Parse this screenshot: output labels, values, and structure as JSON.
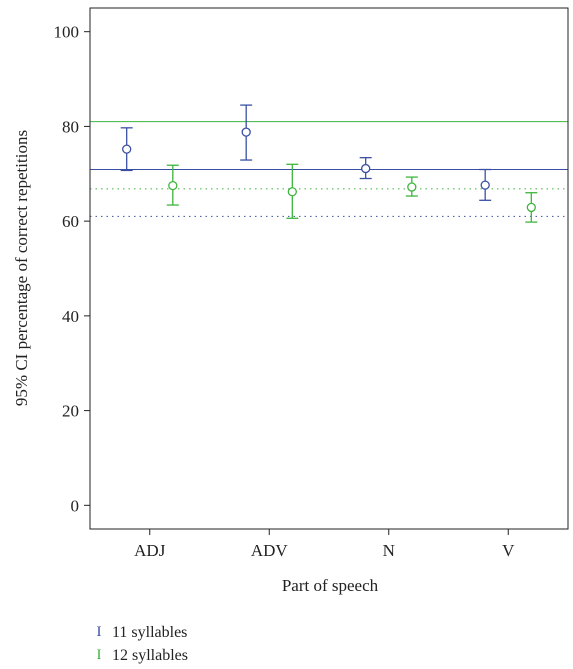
{
  "chart_data": {
    "type": "scatter",
    "subtype": "error-bar",
    "title": "",
    "xlabel": "Part of speech",
    "ylabel": "95% CI percentage of correct repetitions",
    "categories": [
      "ADJ",
      "ADV",
      "N",
      "V"
    ],
    "ylim": [
      -5,
      105
    ],
    "yticks": [
      0,
      20,
      40,
      60,
      80,
      100
    ],
    "grid": false,
    "legend_position": "bottom-left",
    "series": [
      {
        "name": "11 syllables",
        "color": "#3a4fa3",
        "marker": "circle",
        "mean": [
          75.2,
          78.8,
          71.1,
          67.6
        ],
        "lower": [
          70.7,
          72.9,
          69.0,
          64.4
        ],
        "upper": [
          79.7,
          84.5,
          73.4,
          70.9
        ],
        "reference_line": 70.9,
        "reference_line_style": "solid",
        "reference_line_2": 61.0,
        "reference_line_2_style": "dotted"
      },
      {
        "name": "12 syllables",
        "color": "#3db53d",
        "marker": "circle",
        "mean": [
          67.5,
          66.2,
          67.2,
          62.9
        ],
        "lower": [
          63.4,
          60.6,
          65.3,
          59.8
        ],
        "upper": [
          71.8,
          72.0,
          69.3,
          66.0
        ],
        "reference_line": 81.0,
        "reference_line_style": "solid",
        "reference_line_2": 66.8,
        "reference_line_2_style": "dotted"
      }
    ]
  },
  "legend": {
    "items": [
      {
        "symbol": "I",
        "label": "11 syllables",
        "color": "#3a4fa3"
      },
      {
        "symbol": "I",
        "label": "12 syllables",
        "color": "#3db53d"
      }
    ]
  }
}
